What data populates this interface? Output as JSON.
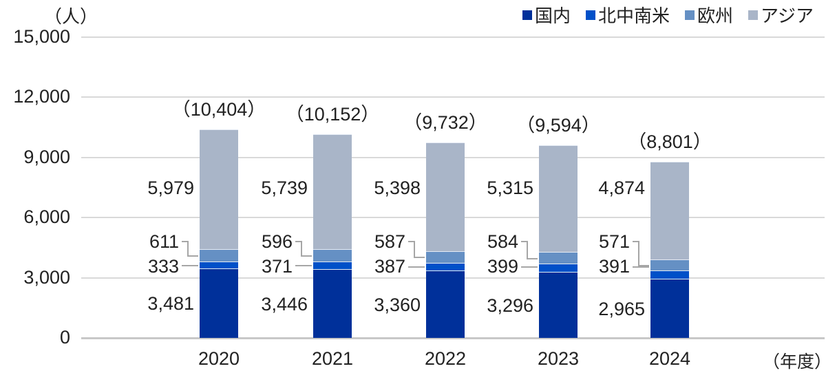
{
  "chart_data": {
    "type": "bar",
    "stacked": true,
    "title": "",
    "ylabel": "（人）",
    "xlabel": "（年度）",
    "ylim": [
      0,
      15000
    ],
    "yticks": [
      "0",
      "3,000",
      "6,000",
      "9,000",
      "12,000",
      "15,000"
    ],
    "grid": true,
    "legend_position": "top-right",
    "categories": [
      "2020",
      "2021",
      "2022",
      "2023",
      "2024"
    ],
    "series": [
      {
        "name": "国内",
        "color": "#00309a",
        "values": [
          3481,
          3446,
          3360,
          3296,
          2965
        ],
        "labels": [
          "3,481",
          "3,446",
          "3,360",
          "3,296",
          "2,965"
        ]
      },
      {
        "name": "北中南米",
        "color": "#0050c8",
        "values": [
          333,
          371,
          387,
          399,
          391
        ],
        "labels": [
          "333",
          "371",
          "387",
          "399",
          "391"
        ]
      },
      {
        "name": "欧州",
        "color": "#6590c4",
        "values": [
          611,
          596,
          587,
          584,
          571
        ],
        "labels": [
          "611",
          "596",
          "587",
          "584",
          "571"
        ]
      },
      {
        "name": "アジア",
        "color": "#a9b5c8",
        "values": [
          5979,
          5739,
          5398,
          5315,
          4874
        ],
        "labels": [
          "5,979",
          "5,739",
          "5,398",
          "5,315",
          "4,874"
        ]
      }
    ],
    "totals": [
      10404,
      10152,
      9732,
      9594,
      8801
    ],
    "total_labels": [
      "（10,404）",
      "（10,152）",
      "（9,732）",
      "（9,594）",
      "（8,801）"
    ]
  }
}
